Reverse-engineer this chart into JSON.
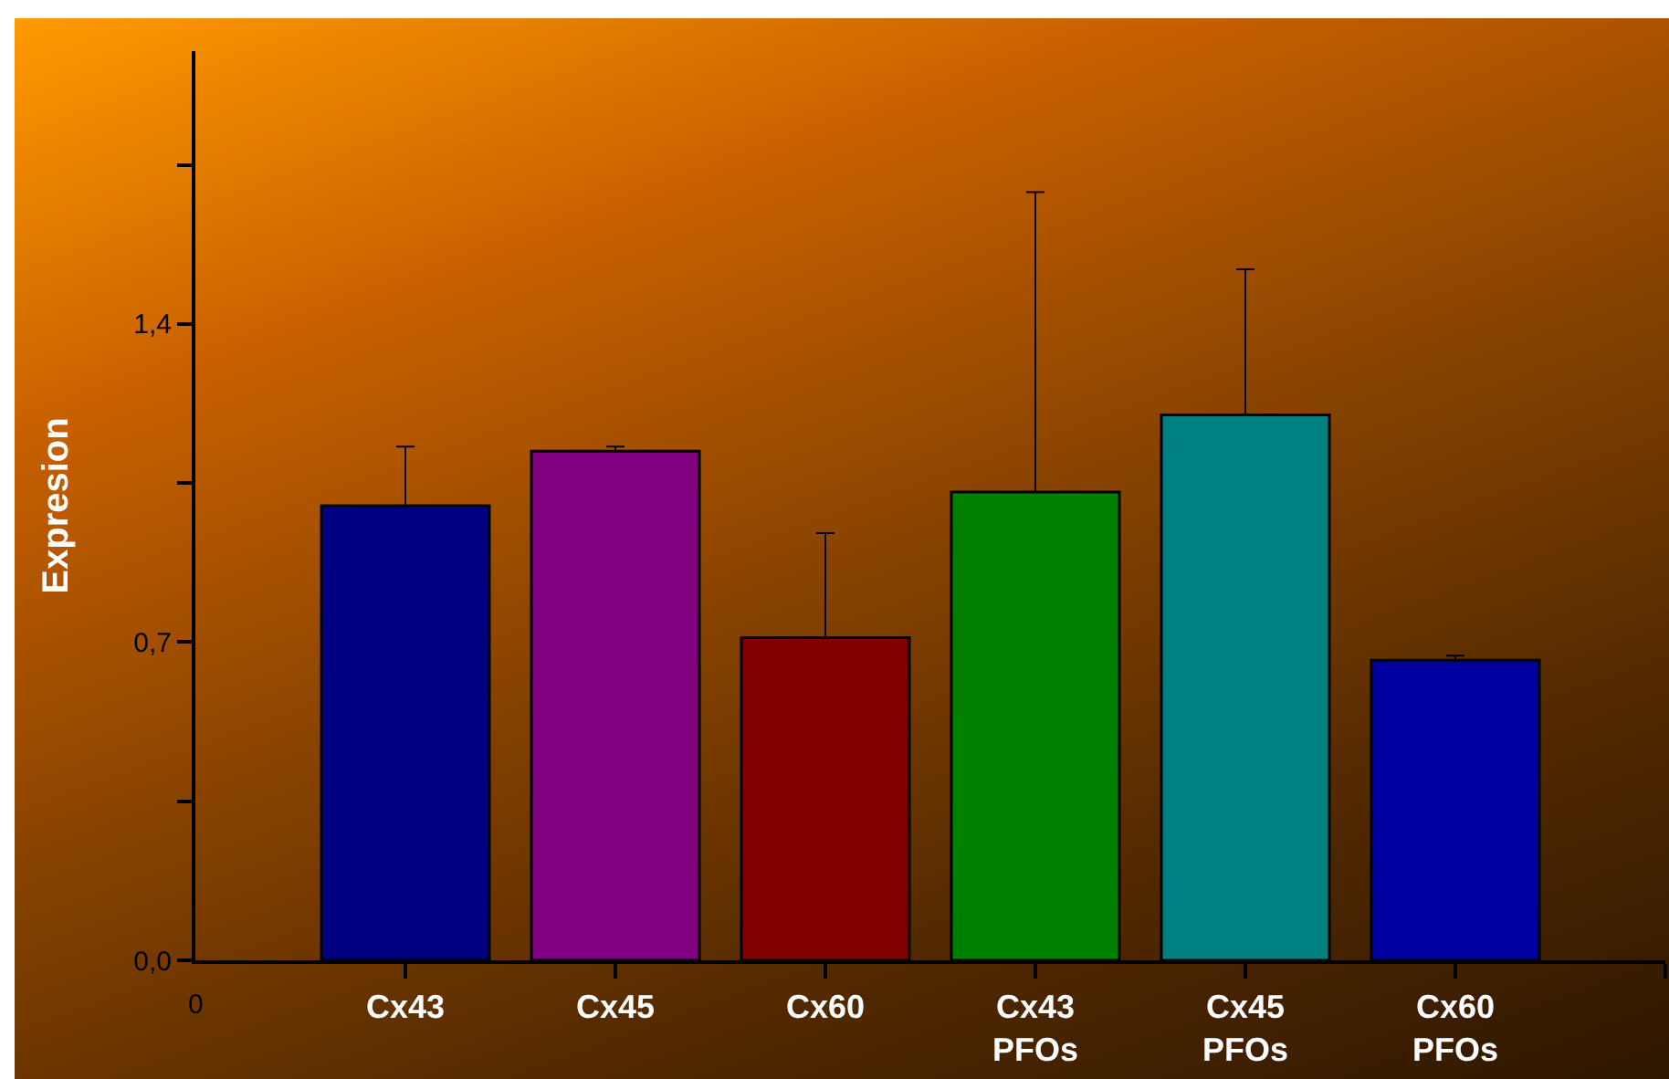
{
  "chart_data": {
    "type": "bar",
    "ylabel": "Expresion",
    "categories": [
      "Cx43",
      "Cx45",
      "Cx60",
      "Cx43 PFOs",
      "Cx45 PFOs",
      "Cx60 PFOs"
    ],
    "values": [
      1.0,
      1.12,
      0.71,
      1.03,
      1.2,
      0.66
    ],
    "colors": [
      "#000080",
      "#800080",
      "#800000",
      "#008000",
      "#008080",
      "#0000a0"
    ],
    "errors": [
      [
        1.0,
        1.13
      ],
      [
        1.12,
        1.13
      ],
      [
        0.71,
        0.94
      ],
      [
        1.03,
        1.69
      ],
      [
        1.2,
        1.52
      ],
      [
        0.66,
        0.67
      ]
    ],
    "ylim": [
      0,
      2
    ],
    "yticks": [
      {
        "value": 0,
        "label": "0,0"
      },
      {
        "value": 0.35,
        "label": null
      },
      {
        "value": 0.7,
        "label": "0,7"
      },
      {
        "value": 1.05,
        "label": null
      },
      {
        "value": 1.4,
        "label": "1,4"
      },
      {
        "value": 1.75,
        "label": null
      }
    ],
    "annotations": [
      "0"
    ],
    "grid": false
  }
}
